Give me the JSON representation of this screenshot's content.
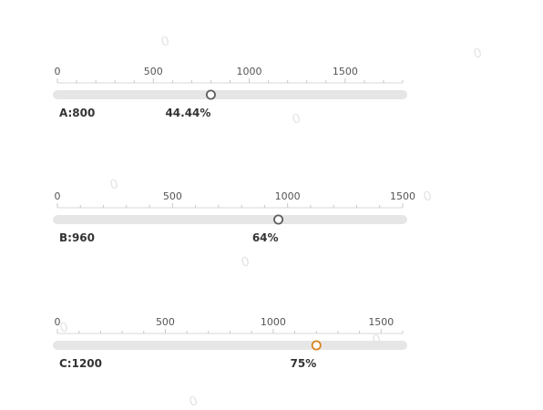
{
  "chart_data": {
    "type": "bar",
    "orientation": "horizontal",
    "categories": [
      "A",
      "B",
      "C"
    ],
    "values": [
      800,
      960,
      1200
    ],
    "series": [
      {
        "name": "A",
        "value": 800,
        "max": 1800,
        "percent_label": "44.44%",
        "value_label": "A:800",
        "ticks": [
          0,
          500,
          1000,
          1500
        ],
        "color": "#5e5e5e"
      },
      {
        "name": "B",
        "value": 960,
        "max": 1500,
        "percent_label": "64%",
        "value_label": "B:960",
        "ticks": [
          0,
          500,
          1000,
          1500
        ],
        "color": "#5e5e5e"
      },
      {
        "name": "C",
        "value": 1200,
        "max": 1600,
        "percent_label": "75%",
        "value_label": "C:1200",
        "ticks": [
          0,
          500,
          1000,
          1500
        ],
        "color": "#d98320"
      }
    ],
    "track_color": "#e6e6e6",
    "grid": false
  },
  "watermark": "0"
}
